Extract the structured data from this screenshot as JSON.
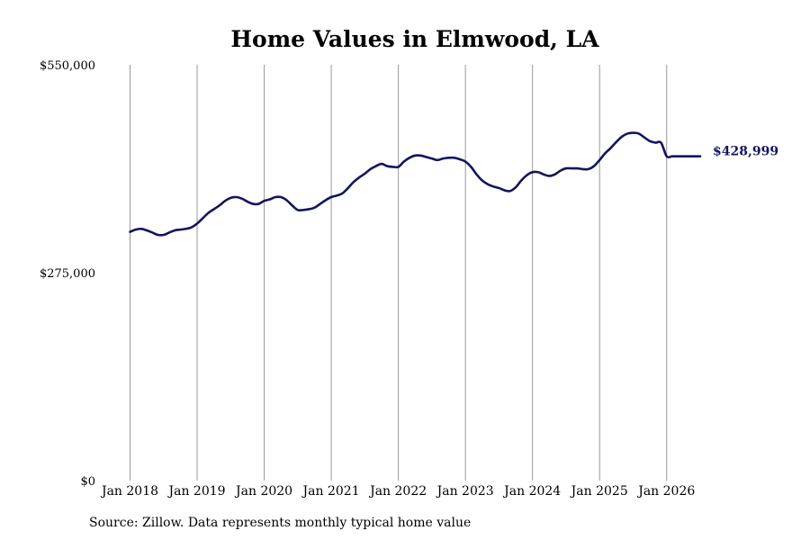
{
  "source_note": "Source: Zillow. Data represents monthly typical home value",
  "end_label": "$428,999",
  "chart_data": {
    "type": "line",
    "title": "Home Values in Elmwood, LA",
    "xlabel": "",
    "ylabel": "",
    "ylim": [
      0,
      550000
    ],
    "xlim": [
      "2018-01",
      "2026-07"
    ],
    "yticks": [
      0,
      275000,
      550000
    ],
    "ytick_labels": [
      "$0",
      "$275,000",
      "$550,000"
    ],
    "xticks": [
      "2018-01",
      "2019-01",
      "2020-01",
      "2021-01",
      "2022-01",
      "2023-01",
      "2024-01",
      "2025-01",
      "2026-01"
    ],
    "xtick_labels": [
      "Jan 2018",
      "Jan 2019",
      "Jan 2020",
      "Jan 2021",
      "Jan 2022",
      "Jan 2023",
      "Jan 2024",
      "Jan 2025",
      "Jan 2026"
    ],
    "grid": "vertical",
    "line_color": "#14145f",
    "grid_color": "#999999",
    "series": [
      {
        "x": [
          "2018-01",
          "2018-02",
          "2018-03",
          "2018-04",
          "2018-05",
          "2018-06",
          "2018-07",
          "2018-08",
          "2018-09",
          "2018-10",
          "2018-11",
          "2018-12",
          "2019-01",
          "2019-02",
          "2019-03",
          "2019-04",
          "2019-05",
          "2019-06",
          "2019-07",
          "2019-08",
          "2019-09",
          "2019-10",
          "2019-11",
          "2019-12",
          "2020-01",
          "2020-02",
          "2020-03",
          "2020-04",
          "2020-05",
          "2020-06",
          "2020-07",
          "2020-08",
          "2020-09",
          "2020-10",
          "2020-11",
          "2020-12",
          "2021-01",
          "2021-02",
          "2021-03",
          "2021-04",
          "2021-05",
          "2021-06",
          "2021-07",
          "2021-08",
          "2021-09",
          "2021-10",
          "2021-11",
          "2021-12",
          "2022-01",
          "2022-02",
          "2022-03",
          "2022-04",
          "2022-05",
          "2022-06",
          "2022-07",
          "2022-08",
          "2022-09",
          "2022-10",
          "2022-11",
          "2022-12",
          "2023-01",
          "2023-02",
          "2023-03",
          "2023-04",
          "2023-05",
          "2023-06",
          "2023-07",
          "2023-08",
          "2023-09",
          "2023-10",
          "2023-11",
          "2023-12",
          "2024-01",
          "2024-02",
          "2024-03",
          "2024-04",
          "2024-05",
          "2024-06",
          "2024-07",
          "2024-08",
          "2024-09",
          "2024-10",
          "2024-11",
          "2024-12",
          "2025-01",
          "2025-02",
          "2025-03",
          "2025-04",
          "2025-05",
          "2025-06",
          "2025-07",
          "2025-08",
          "2025-09",
          "2025-10",
          "2025-11",
          "2025-12",
          "2026-01",
          "2026-02",
          "2026-03",
          "2026-04",
          "2026-05",
          "2026-06",
          "2026-07"
        ],
        "y": [
          329000,
          332000,
          333000,
          331000,
          328000,
          325000,
          325000,
          328000,
          331000,
          332000,
          333000,
          335000,
          340000,
          347000,
          354000,
          359000,
          364000,
          370000,
          374000,
          375000,
          373000,
          369000,
          366000,
          366000,
          370000,
          372000,
          375000,
          375000,
          371000,
          364000,
          358000,
          358000,
          359000,
          361000,
          366000,
          371000,
          375000,
          377000,
          380000,
          387000,
          395000,
          401000,
          406000,
          412000,
          416000,
          419000,
          416000,
          415000,
          415000,
          422000,
          427000,
          430000,
          430000,
          428000,
          426000,
          424000,
          426000,
          427000,
          427000,
          425000,
          422000,
          415000,
          405000,
          397000,
          392000,
          389000,
          387000,
          384000,
          383000,
          388000,
          397000,
          404000,
          408000,
          408000,
          405000,
          403000,
          405000,
          410000,
          413000,
          413000,
          413000,
          412000,
          412000,
          416000,
          424000,
          433000,
          440000,
          448000,
          455000,
          459000,
          460000,
          459000,
          454000,
          449000,
          447000,
          447000,
          429000,
          429000,
          429000,
          429000,
          429000,
          429000,
          429000
        ]
      }
    ]
  }
}
